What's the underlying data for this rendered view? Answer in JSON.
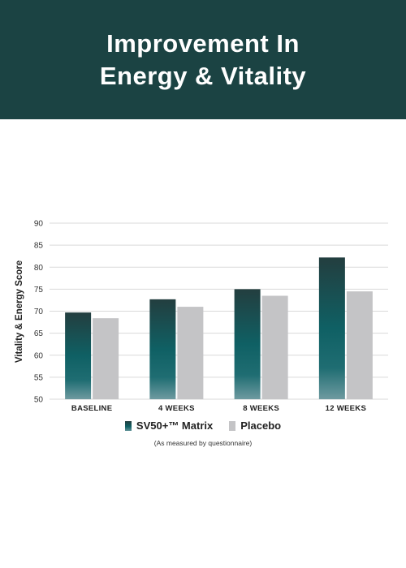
{
  "header": {
    "title_line1": "Improvement In",
    "title_line2": "Energy & Vitality"
  },
  "colors": {
    "header_bg": "#1b4343",
    "placebo": "#c4c4c6",
    "sv50_top": "#233e3f",
    "sv50_mid": "#0f6064",
    "sv50_bottom": "#5e9196"
  },
  "chart_data": {
    "type": "bar",
    "title": "Improvement In Energy & Vitality",
    "xlabel": "",
    "ylabel": "Vitality & Energy Score",
    "ylim": [
      50,
      90
    ],
    "yticks": [
      50,
      55,
      60,
      65,
      70,
      75,
      80,
      85,
      90
    ],
    "grid": true,
    "legend_position": "bottom",
    "categories": [
      "BASELINE",
      "4 WEEKS",
      "8 WEEKS",
      "12 WEEKS"
    ],
    "series": [
      {
        "name": "SV50+™ Matrix",
        "values": [
          69.7,
          72.7,
          75.0,
          82.2
        ]
      },
      {
        "name": "Placebo",
        "values": [
          68.4,
          71.0,
          73.5,
          74.5
        ]
      }
    ],
    "note": "(As measured by questionnaire)"
  }
}
